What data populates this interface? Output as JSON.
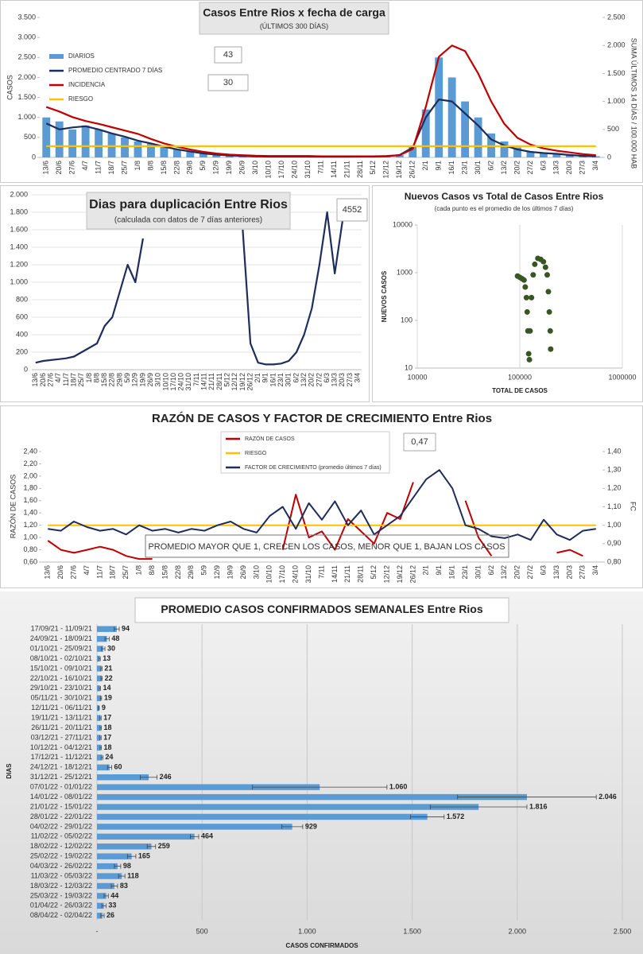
{
  "chart_data": [
    {
      "type": "combo",
      "title": "Casos Entre Rios x fecha de carga",
      "subtitle": "(ÚLTIMOS 300 DÍAS)",
      "ylabel": "CASOS",
      "y2label": "SUMA ÚLTIMOS 14 DÍAS / 100.000 HAB",
      "annotations": [
        "43",
        "30"
      ],
      "legend": "upper left",
      "grid": false,
      "categories": [
        "13/6",
        "20/6",
        "27/6",
        "4/7",
        "11/7",
        "18/7",
        "25/7",
        "1/8",
        "8/8",
        "15/8",
        "22/8",
        "29/8",
        "5/9",
        "12/9",
        "19/9",
        "26/9",
        "3/10",
        "10/10",
        "17/10",
        "24/10",
        "31/10",
        "7/11",
        "14/11",
        "21/11",
        "28/11",
        "5/12",
        "12/12",
        "19/12",
        "26/12",
        "2/1",
        "9/1",
        "16/1",
        "23/1",
        "30/1",
        "6/2",
        "13/2",
        "20/2",
        "27/2",
        "6/3",
        "13/3",
        "20/3",
        "27/3",
        "3/4"
      ],
      "ylim": [
        0,
        3500
      ],
      "yticks": [
        0,
        500,
        {
          "value": 1000,
          "label": "1.000"
        },
        {
          "value": 1500,
          "label": "1.500"
        },
        {
          "value": 2000,
          "label": "2.000"
        },
        {
          "value": 2500,
          "label": "2.500"
        },
        {
          "value": 3000,
          "label": "3.000"
        },
        {
          "value": 3500,
          "label": "3.500"
        }
      ],
      "y2lim": [
        0,
        2500
      ],
      "y2ticks": [
        0,
        500,
        {
          "value": 1000,
          "label": "1.000"
        },
        {
          "value": 1500,
          "label": "1.500"
        },
        {
          "value": 2000,
          "label": "2.000"
        },
        {
          "value": 2500,
          "label": "2.500"
        }
      ],
      "series": [
        {
          "name": "DIARIOS",
          "type": "bar",
          "color": "#5b9bd5",
          "values": [
            1000,
            900,
            700,
            800,
            700,
            600,
            500,
            400,
            350,
            300,
            200,
            150,
            100,
            80,
            60,
            40,
            30,
            20,
            25,
            20,
            20,
            15,
            15,
            20,
            20,
            20,
            30,
            60,
            300,
            1200,
            2500,
            2000,
            1400,
            1000,
            600,
            400,
            250,
            150,
            120,
            100,
            60,
            40,
            30
          ]
        },
        {
          "name": "PROMEDIO CENTRADO 7 DÍAS",
          "type": "line",
          "color": "#1f2d5c",
          "values": [
            850,
            700,
            750,
            780,
            700,
            600,
            520,
            420,
            350,
            270,
            200,
            150,
            100,
            70,
            50,
            35,
            25,
            20,
            20,
            20,
            20,
            15,
            15,
            18,
            20,
            20,
            25,
            60,
            250,
            1000,
            1450,
            1400,
            1100,
            800,
            450,
            300,
            200,
            140,
            110,
            90,
            60,
            40,
            30
          ]
        },
        {
          "name": "INCIDENCIA",
          "type": "line",
          "axis": "y2",
          "color": "#c00000",
          "values": [
            900,
            820,
            720,
            650,
            600,
            540,
            480,
            420,
            330,
            250,
            190,
            140,
            100,
            70,
            50,
            40,
            30,
            25,
            25,
            25,
            25,
            20,
            20,
            20,
            20,
            20,
            25,
            40,
            150,
            900,
            1800,
            2000,
            1900,
            1500,
            1000,
            600,
            350,
            230,
            160,
            120,
            90,
            60,
            40
          ]
        },
        {
          "name": "RIESGO",
          "type": "line",
          "axis": "y2",
          "color": "#ffc000",
          "values": [
            200,
            200,
            200,
            200,
            200,
            200,
            200,
            200,
            200,
            200,
            200,
            200,
            200,
            200,
            200,
            200,
            200,
            200,
            200,
            200,
            200,
            200,
            200,
            200,
            200,
            200,
            200,
            200,
            200,
            200,
            200,
            200,
            200,
            200,
            200,
            200,
            200,
            200,
            200,
            200,
            200,
            200,
            200
          ]
        }
      ]
    },
    {
      "type": "line",
      "title": "Dias para duplicación Entre Rios",
      "subtitle": "(calculada con datos de 7 días anteriores)",
      "annotations": [
        "4552"
      ],
      "grid": true,
      "color": "#1f2d5c",
      "categories": [
        "13/6",
        "20/6",
        "27/6",
        "4/7",
        "11/7",
        "18/7",
        "25/7",
        "1/8",
        "8/8",
        "15/8",
        "22/8",
        "29/8",
        "5/9",
        "12/9",
        "19/9",
        "26/9",
        "3/10",
        "10/10",
        "17/10",
        "24/10",
        "31/10",
        "7/11",
        "14/11",
        "21/11",
        "28/11",
        "5/12",
        "12/12",
        "19/12",
        "26/12",
        "2/1",
        "9/1",
        "16/1",
        "23/1",
        "30/1",
        "6/2",
        "13/2",
        "20/2",
        "27/2",
        "6/3",
        "13/3",
        "20/3",
        "27/3",
        "3/4"
      ],
      "ylim": [
        0,
        2000
      ],
      "yticks": [
        0,
        200,
        400,
        600,
        800,
        {
          "value": 1000,
          "label": "1.000"
        },
        {
          "value": 1200,
          "label": "1.200"
        },
        {
          "value": 1400,
          "label": "1.400"
        },
        {
          "value": 1600,
          "label": "1.600"
        },
        {
          "value": 1800,
          "label": "1.800"
        },
        {
          "value": 2000,
          "label": "2.000"
        }
      ],
      "values": [
        80,
        100,
        110,
        120,
        130,
        150,
        200,
        250,
        300,
        500,
        600,
        900,
        1200,
        1000,
        1500,
        null,
        null,
        null,
        null,
        null,
        null,
        null,
        null,
        null,
        null,
        null,
        null,
        1600,
        300,
        80,
        60,
        60,
        70,
        100,
        200,
        400,
        700,
        1200,
        1800,
        1100,
        1700,
        null,
        null
      ]
    },
    {
      "type": "scatter",
      "title": "Nuevos Casos vs Total de Casos Entre Rios",
      "subtitle": "(cada punto es el promedio de los últimos 7 días)",
      "xlabel": "TOTAL DE CASOS",
      "ylabel": "NUEVOS CASOS",
      "xscale": "log",
      "yscale": "log",
      "xgrid": true,
      "color": "#375623",
      "xlim": [
        10000,
        1000000
      ],
      "xticks": [
        10000,
        100000,
        1000000
      ],
      "ylim": [
        10,
        10000
      ],
      "yticks": [
        10,
        100,
        1000,
        10000
      ],
      "x": [
        95000,
        100000,
        105000,
        110000,
        113000,
        116000,
        118000,
        120000,
        122000,
        124000,
        126000,
        130000,
        135000,
        140000,
        150000,
        160000,
        170000,
        178000,
        185000,
        190000,
        194000,
        198000,
        200000
      ],
      "values": [
        850,
        800,
        750,
        700,
        500,
        300,
        150,
        60,
        20,
        15,
        60,
        300,
        900,
        1500,
        2000,
        1900,
        1700,
        1300,
        900,
        400,
        150,
        60,
        25
      ]
    },
    {
      "type": "line",
      "title": "RAZÓN DE CASOS Y FACTOR DE CRECIMIENTO Entre Rios",
      "ylabel": "RAZÓN DE CASOS",
      "y2label": "FC",
      "annotations": [
        "0,47",
        "PROMEDIO MAYOR QUE 1, CRECEN LOS CASOS, MENOR QUE 1, BAJAN LOS CASOS"
      ],
      "legend": "upper center",
      "grid": false,
      "categories": [
        "13/6",
        "20/6",
        "27/6",
        "4/7",
        "11/7",
        "18/7",
        "25/7",
        "1/8",
        "8/8",
        "15/8",
        "22/8",
        "29/8",
        "5/9",
        "12/9",
        "19/9",
        "26/9",
        "3/10",
        "10/10",
        "17/10",
        "24/10",
        "31/10",
        "7/11",
        "14/11",
        "21/11",
        "28/11",
        "5/12",
        "12/12",
        "19/12",
        "26/12",
        "2/1",
        "9/1",
        "16/1",
        "23/1",
        "30/1",
        "6/2",
        "13/2",
        "20/2",
        "27/2",
        "6/3",
        "13/3",
        "20/3",
        "27/3",
        "3/4"
      ],
      "ylim": [
        0.6,
        2.4
      ],
      "yticks": [
        {
          "value": 0.6,
          "label": "0,60"
        },
        {
          "value": 0.8,
          "label": "0,80"
        },
        {
          "value": 1.0,
          "label": "1,00"
        },
        {
          "value": 1.2,
          "label": "1,20"
        },
        {
          "value": 1.4,
          "label": "1,40"
        },
        {
          "value": 1.6,
          "label": "1,60"
        },
        {
          "value": 1.8,
          "label": "1,80"
        },
        {
          "value": 2.0,
          "label": "2,00"
        },
        {
          "value": 2.2,
          "label": "2,20"
        },
        {
          "value": 2.4,
          "label": "2,40"
        }
      ],
      "y2lim": [
        0.8,
        1.4
      ],
      "y2ticks": [
        {
          "value": 0.8,
          "label": "0,80"
        },
        {
          "value": 0.9,
          "label": "0,90"
        },
        {
          "value": 1.0,
          "label": "1,00"
        },
        {
          "value": 1.1,
          "label": "1,10"
        },
        {
          "value": 1.2,
          "label": "1,20"
        },
        {
          "value": 1.3,
          "label": "1,30"
        },
        {
          "value": 1.4,
          "label": "1,40"
        }
      ],
      "series": [
        {
          "name": "RAZÓN DE CASOS",
          "type": "line",
          "color": "#c00000",
          "values": [
            0.95,
            0.8,
            0.75,
            0.8,
            0.85,
            0.8,
            0.7,
            0.65,
            0.65,
            null,
            null,
            null,
            null,
            null,
            null,
            0.7,
            null,
            null,
            0.8,
            1.7,
            1.0,
            1.1,
            0.8,
            1.3,
            1.1,
            0.9,
            1.4,
            1.3,
            1.9,
            null,
            null,
            null,
            1.6,
            1.0,
            0.7,
            null,
            null,
            null,
            null,
            0.75,
            0.8,
            0.7,
            null
          ]
        },
        {
          "name": "RIESGO",
          "type": "line",
          "color": "#ffc000",
          "values": [
            1.2,
            1.2,
            1.2,
            1.2,
            1.2,
            1.2,
            1.2,
            1.2,
            1.2,
            1.2,
            1.2,
            1.2,
            1.2,
            1.2,
            1.2,
            1.2,
            1.2,
            1.2,
            1.2,
            1.2,
            1.2,
            1.2,
            1.2,
            1.2,
            1.2,
            1.2,
            1.2,
            1.2,
            1.2,
            1.2,
            1.2,
            1.2,
            1.2,
            1.2,
            1.2,
            1.2,
            1.2,
            1.2,
            1.2,
            1.2,
            1.2,
            1.2,
            1.2
          ]
        },
        {
          "name": "FACTOR DE CRECIMIENTO (promedio últimos 7 días)",
          "type": "line",
          "axis": "y2",
          "color": "#1f2d5c",
          "values": [
            0.98,
            0.97,
            1.02,
            0.99,
            0.97,
            0.98,
            0.95,
            1.0,
            0.97,
            0.98,
            0.96,
            0.98,
            0.97,
            1.0,
            1.02,
            0.98,
            0.96,
            1.05,
            1.1,
            0.98,
            1.12,
            1.03,
            1.13,
            1.0,
            1.08,
            0.95,
            1.0,
            1.05,
            1.15,
            1.25,
            1.3,
            1.2,
            1.0,
            0.98,
            0.94,
            0.93,
            0.95,
            0.92,
            1.03,
            0.95,
            0.92,
            0.97,
            0.98
          ]
        }
      ]
    },
    {
      "type": "bar",
      "orientation": "horizontal",
      "title": "PROMEDIO CASOS CONFIRMADOS SEMANALES Entre Rios",
      "xlabel": "CASOS CONFIRMADOS",
      "ylabel": "DIAS",
      "color": "#5b9bd5",
      "xgrid": true,
      "xlim": [
        0,
        2500
      ],
      "xticks": [
        {
          "value": 0,
          "label": "-"
        },
        500,
        {
          "value": 1000,
          "label": "1.000"
        },
        {
          "value": 1500,
          "label": "1.500"
        },
        {
          "value": 2000,
          "label": "2.000"
        },
        {
          "value": 2500,
          "label": "2.500"
        }
      ],
      "categories": [
        "17/09/21 - 11/09/21",
        "24/09/21 - 18/09/21",
        "01/10/21 - 25/09/21",
        "08/10/21 - 02/10/21",
        "15/10/21 - 09/10/21",
        "22/10/21 - 16/10/21",
        "29/10/21 - 23/10/21",
        "05/11/21 - 30/10/21",
        "12/11/21 - 06/11/21",
        "19/11/21 - 13/11/21",
        "26/11/21 - 20/11/21",
        "03/12/21 - 27/11/21",
        "10/12/21 - 04/12/21",
        "17/12/21 - 11/12/21",
        "24/12/21 - 18/12/21",
        "31/12/21 - 25/12/21",
        "07/01/22 - 01/01/22",
        "14/01/22 - 08/01/22",
        "21/01/22 - 15/01/22",
        "28/01/22 - 22/01/22",
        "04/02/22 - 29/01/22",
        "11/02/22 - 05/02/22",
        "18/02/22 - 12/02/22",
        "25/02/22 - 19/02/22",
        "04/03/22 - 26/02/22",
        "11/03/22 - 05/03/22",
        "18/03/22 - 12/03/22",
        "25/03/22 - 19/03/22",
        "01/04/22 - 26/03/22",
        "08/04/22 - 02/04/22"
      ],
      "values": [
        94,
        48,
        30,
        13,
        21,
        22,
        14,
        19,
        9,
        17,
        18,
        17,
        18,
        24,
        60,
        246,
        1060,
        2046,
        1816,
        1572,
        929,
        464,
        259,
        165,
        98,
        118,
        83,
        44,
        33,
        26
      ],
      "value_labels": [
        "94",
        "48",
        "30",
        "13",
        "21",
        "22",
        "14",
        "19",
        "9",
        "17",
        "18",
        "17",
        "18",
        "24",
        "60",
        "246",
        "1.060",
        "2.046",
        "1.816",
        "1.572",
        "929",
        "464",
        "259",
        "165",
        "98",
        "118",
        "83",
        "44",
        "33",
        "26"
      ],
      "errors": [
        12,
        10,
        8,
        3,
        3,
        3,
        3,
        3,
        2,
        3,
        3,
        3,
        3,
        4,
        10,
        40,
        320,
        330,
        230,
        80,
        50,
        20,
        20,
        20,
        15,
        15,
        15,
        10,
        10,
        8
      ]
    }
  ]
}
